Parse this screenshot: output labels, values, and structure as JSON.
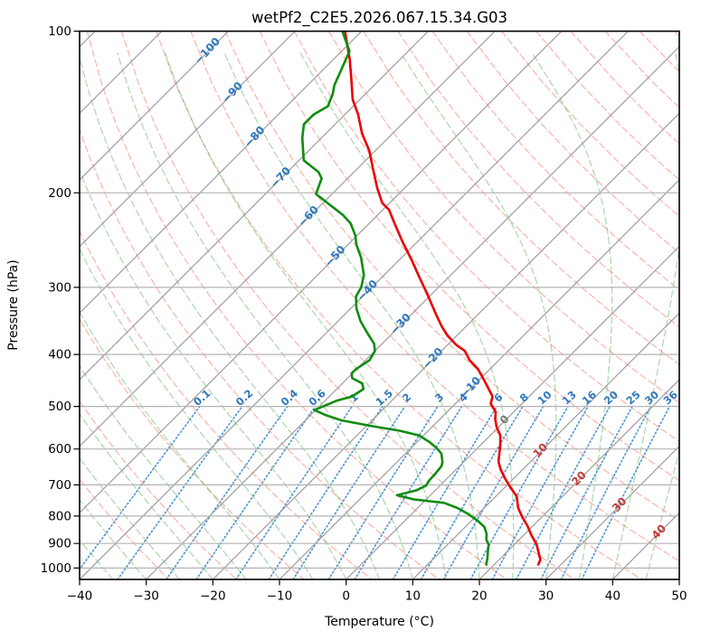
{
  "chart_data": {
    "type": "line",
    "variant": "skew-t-log-p-sounding",
    "title": "wetPf2_C2E5.2026.067.15.34.G03",
    "xlabel": "Temperature (°C)",
    "ylabel": "Pressure (hPa)",
    "x_axis": {
      "min": -40,
      "max": 50,
      "ticks": [
        {
          "v": -40,
          "label": "−40"
        },
        {
          "v": -30,
          "label": "−30"
        },
        {
          "v": -20,
          "label": "−20"
        },
        {
          "v": -10,
          "label": "−10"
        },
        {
          "v": 0,
          "label": "0"
        },
        {
          "v": 10,
          "label": "10"
        },
        {
          "v": 20,
          "label": "20"
        },
        {
          "v": 30,
          "label": "30"
        },
        {
          "v": 40,
          "label": "40"
        },
        {
          "v": 50,
          "label": "50"
        }
      ]
    },
    "y_axis": {
      "scale": "log",
      "min": 100,
      "max": 1050,
      "ticks": [
        100,
        200,
        300,
        400,
        500,
        600,
        700,
        800,
        900,
        1000
      ]
    },
    "skew_deg": 45,
    "grid": true,
    "colors": {
      "temperature": "#ea0000",
      "dewpoint": "#0e8c0e",
      "isotherm_line": "#9c9c9c",
      "pressure_gridline": "#b4b4b4",
      "dry_adiabat": "rgba(240,128,112,0.55)",
      "moist_adiabat": "rgba(80,170,80,0.45)",
      "mixing_line": "#4b93d5",
      "label_negative": "#2e78bd",
      "label_zero": "#7a7a7a",
      "label_positive": "#c43c39",
      "axis_text": "#000000"
    },
    "isotherms": {
      "tmin": -120,
      "tmax": 50,
      "step": 10
    },
    "isotherm_labels": [
      {
        "t": -100,
        "y": 55
      },
      {
        "t": -90,
        "y": 101
      },
      {
        "t": -80,
        "y": 150
      },
      {
        "t": -70,
        "y": 195
      },
      {
        "t": -60,
        "y": 238
      },
      {
        "t": -50,
        "y": 282
      },
      {
        "t": -40,
        "y": 320
      },
      {
        "t": -30,
        "y": 357
      },
      {
        "t": -20,
        "y": 395
      },
      {
        "t": -10,
        "y": 427
      },
      {
        "t": 0,
        "y": 463
      },
      {
        "t": 10,
        "y": 497
      },
      {
        "t": 20,
        "y": 528
      },
      {
        "t": 30,
        "y": 557
      },
      {
        "t": 40,
        "y": 587
      }
    ],
    "dry_adiabats": {
      "theta_min": -30,
      "theta_max": 190,
      "step": 10
    },
    "moist_adiabats": {
      "t0_min": -40,
      "t0_max": 45,
      "step": 5
    },
    "mixing_ratio_lines": {
      "values_g_per_kg": [
        0.1,
        0.2,
        0.4,
        0.6,
        1,
        1.5,
        2,
        3,
        4,
        6,
        8,
        10,
        13,
        16,
        20,
        25,
        30,
        36
      ],
      "labels": [
        "0.1",
        "0.2",
        "0.4",
        "0.6",
        "1",
        "1.5",
        "2",
        "3",
        "4",
        "6",
        "8",
        "10",
        "13",
        "16",
        "20",
        "25",
        "30",
        "36"
      ],
      "p_bottom": 1050,
      "p_top": 500,
      "label_pressure": 487
    },
    "series": [
      {
        "name": "temperature",
        "points": [
          [
            100,
            -82.5
          ],
          [
            113,
            -77.5
          ],
          [
            122,
            -74.6
          ],
          [
            134,
            -71.1
          ],
          [
            143,
            -68.0
          ],
          [
            155,
            -64.6
          ],
          [
            167,
            -60.9
          ],
          [
            181,
            -57.5
          ],
          [
            196,
            -54.1
          ],
          [
            209,
            -51.1
          ],
          [
            215,
            -49.1
          ],
          [
            228,
            -46.2
          ],
          [
            247,
            -42.2
          ],
          [
            267,
            -38.1
          ],
          [
            285,
            -34.8
          ],
          [
            308,
            -30.8
          ],
          [
            337,
            -26.3
          ],
          [
            355,
            -23.6
          ],
          [
            369,
            -21.4
          ],
          [
            384,
            -18.7
          ],
          [
            394,
            -16.5
          ],
          [
            410,
            -14.4
          ],
          [
            426,
            -11.8
          ],
          [
            446,
            -9.3
          ],
          [
            479,
            -5.5
          ],
          [
            494,
            -4.7
          ],
          [
            512,
            -2.7
          ],
          [
            528,
            -1.7
          ],
          [
            545,
            -0.4
          ],
          [
            566,
            1.5
          ],
          [
            589,
            2.9
          ],
          [
            612,
            4.1
          ],
          [
            634,
            5.2
          ],
          [
            654,
            6.6
          ],
          [
            680,
            8.6
          ],
          [
            707,
            10.8
          ],
          [
            735,
            13.1
          ],
          [
            773,
            15.1
          ],
          [
            804,
            17.1
          ],
          [
            835,
            19.2
          ],
          [
            869,
            21.2
          ],
          [
            903,
            23.3
          ],
          [
            939,
            25.0
          ],
          [
            965,
            26.2
          ],
          [
            985,
            26.6
          ]
        ]
      },
      {
        "name": "dewpoint",
        "points": [
          [
            100,
            -82.9
          ],
          [
            109,
            -78.8
          ],
          [
            119,
            -77.1
          ],
          [
            126,
            -76.0
          ],
          [
            131,
            -74.9
          ],
          [
            138,
            -73.8
          ],
          [
            143,
            -74.7
          ],
          [
            149,
            -74.7
          ],
          [
            158,
            -72.9
          ],
          [
            174,
            -69.3
          ],
          [
            183,
            -65.3
          ],
          [
            188,
            -63.9
          ],
          [
            201,
            -62.4
          ],
          [
            209,
            -59.3
          ],
          [
            220,
            -55.2
          ],
          [
            228,
            -52.8
          ],
          [
            240,
            -50.3
          ],
          [
            250,
            -48.7
          ],
          [
            264,
            -46.1
          ],
          [
            285,
            -43.0
          ],
          [
            300,
            -41.6
          ],
          [
            312,
            -41.0
          ],
          [
            328,
            -39.2
          ],
          [
            347,
            -36.6
          ],
          [
            365,
            -33.8
          ],
          [
            382,
            -31.2
          ],
          [
            394,
            -30.0
          ],
          [
            410,
            -29.4
          ],
          [
            426,
            -30.1
          ],
          [
            434,
            -30.1
          ],
          [
            443,
            -29.3
          ],
          [
            453,
            -27.0
          ],
          [
            464,
            -26.0
          ],
          [
            479,
            -26.6
          ],
          [
            488,
            -28.3
          ],
          [
            508,
            -30.2
          ],
          [
            520,
            -27.5
          ],
          [
            531,
            -24.5
          ],
          [
            545,
            -18.7
          ],
          [
            555,
            -14.3
          ],
          [
            566,
            -10.7
          ],
          [
            582,
            -8.2
          ],
          [
            598,
            -6.1
          ],
          [
            612,
            -4.6
          ],
          [
            634,
            -3.2
          ],
          [
            646,
            -2.7
          ],
          [
            667,
            -2.5
          ],
          [
            687,
            -2.4
          ],
          [
            702,
            -2.1
          ],
          [
            716,
            -2.8
          ],
          [
            732,
            -5.0
          ],
          [
            745,
            -1.8
          ],
          [
            756,
            3.2
          ],
          [
            773,
            6.0
          ],
          [
            794,
            8.6
          ],
          [
            816,
            10.9
          ],
          [
            839,
            12.9
          ],
          [
            863,
            14.2
          ],
          [
            886,
            15.1
          ],
          [
            903,
            16.1
          ],
          [
            932,
            17.1
          ],
          [
            958,
            18.0
          ],
          [
            985,
            18.8
          ]
        ]
      }
    ]
  }
}
